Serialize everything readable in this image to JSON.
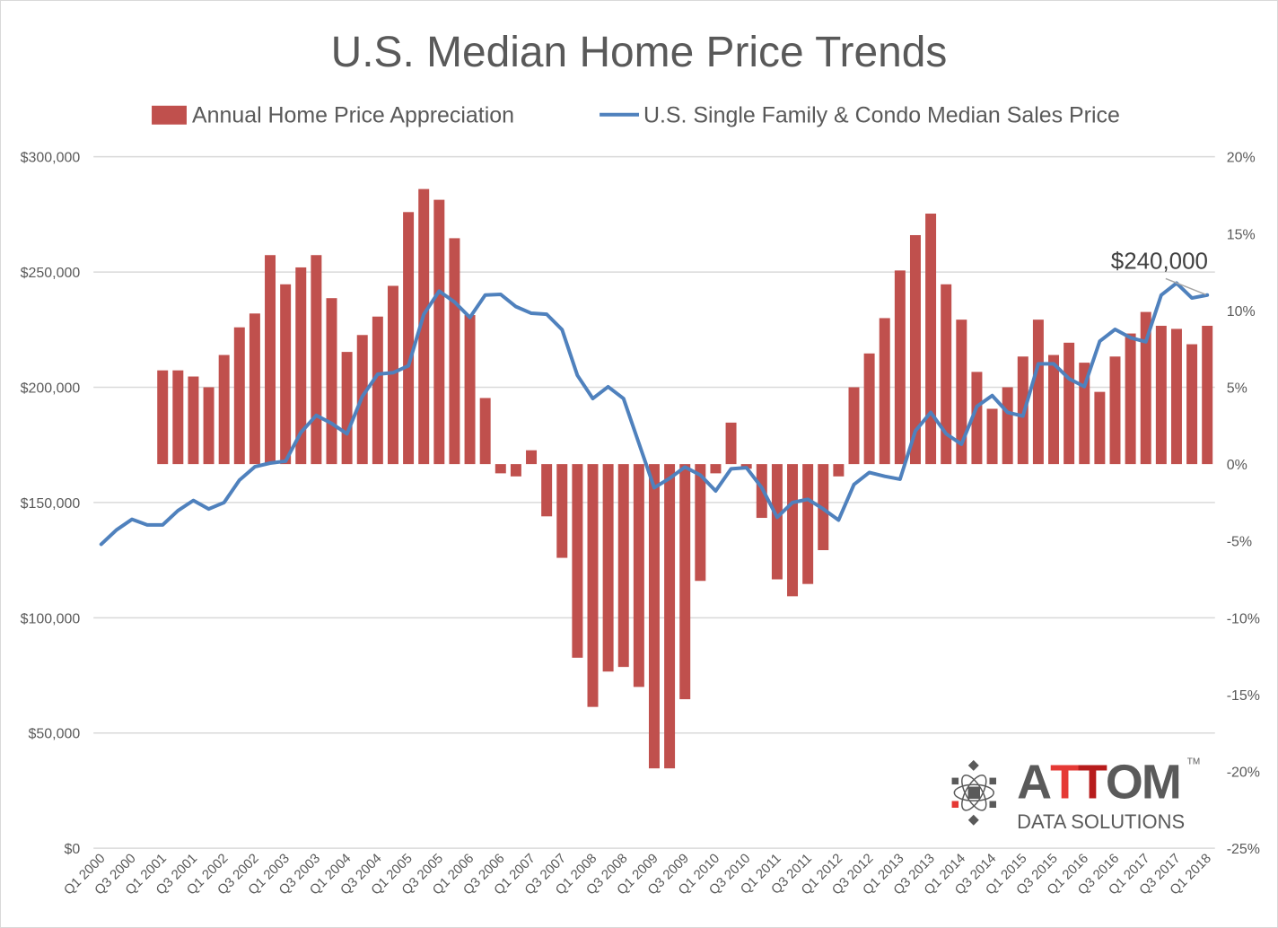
{
  "chart_data": {
    "type": "bar+line",
    "title": "U.S. Median Home Price Trends",
    "legend_position": "top",
    "grid": true,
    "categories": [
      "Q1 2000",
      "Q2 2000",
      "Q3 2000",
      "Q4 2000",
      "Q1 2001",
      "Q2 2001",
      "Q3 2001",
      "Q4 2001",
      "Q1 2002",
      "Q2 2002",
      "Q3 2002",
      "Q4 2002",
      "Q1 2003",
      "Q2 2003",
      "Q3 2003",
      "Q4 2003",
      "Q1 2004",
      "Q2 2004",
      "Q3 2004",
      "Q4 2004",
      "Q1 2005",
      "Q2 2005",
      "Q3 2005",
      "Q4 2005",
      "Q1 2006",
      "Q2 2006",
      "Q3 2006",
      "Q4 2006",
      "Q1 2007",
      "Q2 2007",
      "Q3 2007",
      "Q4 2007",
      "Q1 2008",
      "Q2 2008",
      "Q3 2008",
      "Q4 2008",
      "Q1 2009",
      "Q2 2009",
      "Q3 2009",
      "Q4 2009",
      "Q1 2010",
      "Q2 2010",
      "Q3 2010",
      "Q4 2010",
      "Q1 2011",
      "Q2 2011",
      "Q3 2011",
      "Q4 2011",
      "Q1 2012",
      "Q2 2012",
      "Q3 2012",
      "Q4 2012",
      "Q1 2013",
      "Q2 2013",
      "Q3 2013",
      "Q4 2013",
      "Q1 2014",
      "Q2 2014",
      "Q3 2014",
      "Q4 2014",
      "Q1 2015",
      "Q2 2015",
      "Q3 2015",
      "Q4 2015",
      "Q1 2016",
      "Q2 2016",
      "Q3 2016",
      "Q4 2016",
      "Q1 2017",
      "Q2 2017",
      "Q3 2017",
      "Q4 2017",
      "Q1 2018"
    ],
    "x_tick_labels": [
      "Q1 2000",
      "Q3 2000",
      "Q1 2001",
      "Q3 2001",
      "Q1 2002",
      "Q3 2002",
      "Q1 2003",
      "Q3 2003",
      "Q1 2004",
      "Q3 2004",
      "Q1 2005",
      "Q3 2005",
      "Q1 2006",
      "Q3 2006",
      "Q1 2007",
      "Q3 2007",
      "Q1 2008",
      "Q3 2008",
      "Q1 2009",
      "Q3 2009",
      "Q1 2010",
      "Q3 2010",
      "Q1 2011",
      "Q3 2011",
      "Q1 2012",
      "Q3 2012",
      "Q1 2013",
      "Q3 2013",
      "Q1 2014",
      "Q3 2014",
      "Q1 2015",
      "Q3 2015",
      "Q1 2016",
      "Q3 2016",
      "Q1 2017",
      "Q3 2017",
      "Q1 2018"
    ],
    "y_left": {
      "range": [
        0,
        300000
      ],
      "ticks": [
        "$0",
        "$50,000",
        "$100,000",
        "$150,000",
        "$200,000",
        "$250,000",
        "$300,000"
      ]
    },
    "y_right": {
      "range": [
        -25,
        20
      ],
      "unit": "%",
      "ticks": [
        "-25%",
        "-20%",
        "-15%",
        "-10%",
        "-5%",
        "0%",
        "5%",
        "10%",
        "15%",
        "20%"
      ]
    },
    "series": [
      {
        "name": "Annual Home Price Appreciation",
        "type": "bar",
        "axis": "right",
        "color": "#C0504D",
        "values": [
          null,
          null,
          null,
          null,
          6.1,
          6.1,
          5.7,
          5.0,
          7.1,
          8.9,
          9.8,
          13.6,
          11.7,
          12.8,
          13.6,
          10.8,
          7.3,
          8.4,
          9.6,
          11.6,
          16.4,
          17.9,
          17.2,
          14.7,
          9.7,
          4.3,
          -0.6,
          -0.8,
          0.9,
          -3.4,
          -6.1,
          -12.6,
          -15.8,
          -13.5,
          -13.2,
          -14.5,
          -19.8,
          -19.8,
          -15.3,
          -7.6,
          -0.6,
          2.7,
          -0.3,
          -3.5,
          -7.5,
          -8.6,
          -7.8,
          -5.6,
          -0.8,
          5.0,
          7.2,
          9.5,
          12.6,
          14.9,
          16.3,
          11.7,
          9.4,
          6.0,
          3.6,
          5.0,
          7.0,
          9.4,
          7.1,
          7.9,
          6.6,
          4.7,
          7.0,
          8.5,
          9.9,
          9.0,
          8.8,
          7.8,
          9.0
        ]
      },
      {
        "name": "U.S. Single Family & Condo Median Sales Price",
        "type": "line",
        "axis": "left",
        "color": "#4F81BD",
        "values": [
          131900,
          138100,
          142700,
          140300,
          140300,
          146500,
          150900,
          147200,
          150000,
          159700,
          165500,
          167100,
          167900,
          180400,
          187800,
          184300,
          179800,
          196000,
          205700,
          206300,
          209300,
          231600,
          241700,
          237000,
          230300,
          240000,
          240300,
          235000,
          232100,
          231700,
          225000,
          205200,
          195100,
          200200,
          195100,
          175800,
          156400,
          160500,
          165400,
          161900,
          155000,
          164600,
          165100,
          156400,
          143600,
          150000,
          151400,
          147200,
          142400,
          157800,
          163000,
          161400,
          160100,
          181100,
          189100,
          179800,
          175300,
          191700,
          196400,
          189100,
          187500,
          210200,
          210200,
          203700,
          200300,
          220000,
          225100,
          221500,
          219700,
          240000,
          245200,
          238700,
          240000
        ]
      }
    ],
    "annotations": [
      {
        "text": "$240,000",
        "category": "Q1 2018"
      }
    ]
  },
  "logo": {
    "name": "ATTOM",
    "tagline": "DATA SOLUTIONS",
    "tm": "TM"
  }
}
